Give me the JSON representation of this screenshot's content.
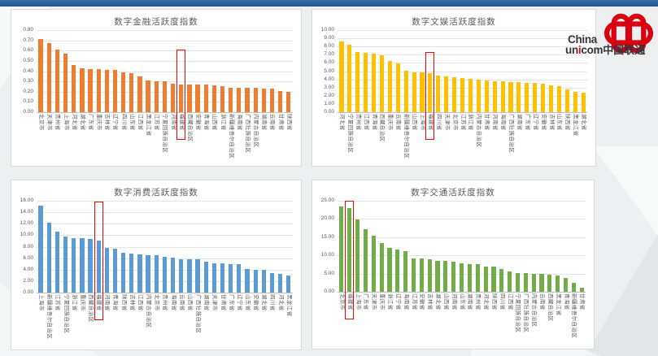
{
  "logo": {
    "china": "China",
    "un": "un",
    "i": "i",
    "com": "com",
    "cn": "中国联通",
    "brand_red": "#e60012",
    "brand_dark": "#33343a"
  },
  "colors": {
    "topbar_blue": "#2a5d9b",
    "highlight_red": "#ff0000"
  },
  "chart_data": [
    {
      "type": "bar",
      "title": "数字金融活跃度指数",
      "color": "#ED7D31",
      "ylim": [
        0,
        0.8
      ],
      "ytick_step": 0.1,
      "grid": true,
      "highlight_index": 17,
      "highlight_box_top_value": 0.61,
      "categories": [
        "北京市",
        "天津市",
        "贵州省",
        "上海市",
        "河北省",
        "湖北省",
        "广东省",
        "重庆市",
        "吉林省",
        "辽宁省",
        "四川省",
        "山东省",
        "江西省",
        "黑龙江省",
        "江苏省",
        "宁夏回族自治区",
        "河南省",
        "福建省",
        "西藏自治区",
        "安徽省",
        "青海省",
        "山西省",
        "浙江省",
        "新疆维吾尔自治区",
        "海南省",
        "广西壮族自治区",
        "内蒙古自治区",
        "湖南省",
        "云南省",
        "甘肃省",
        "陕西省"
      ],
      "values": [
        0.71,
        0.67,
        0.61,
        0.57,
        0.46,
        0.43,
        0.42,
        0.42,
        0.41,
        0.41,
        0.39,
        0.38,
        0.35,
        0.31,
        0.3,
        0.3,
        0.28,
        0.27,
        0.27,
        0.27,
        0.27,
        0.26,
        0.25,
        0.24,
        0.24,
        0.24,
        0.24,
        0.23,
        0.23,
        0.21,
        0.2
      ]
    },
    {
      "type": "bar",
      "title": "数字文娱活跃度指数",
      "color": "#FFC000",
      "ylim": [
        0,
        10
      ],
      "ytick_step": 1,
      "grid": true,
      "highlight_index": 11,
      "highlight_box_top_value": 7.35,
      "categories": [
        "河北省",
        "宁夏回族自治区",
        "贵州省",
        "江西省",
        "青海省",
        "西藏自治区",
        "重庆市",
        "云南省",
        "新疆维吾尔自治区",
        "山西省",
        "上海市",
        "福建省",
        "四川省",
        "天津市",
        "北京市",
        "江苏省",
        "浙江省",
        "内蒙古自治区",
        "甘肃省",
        "河南省",
        "海南省",
        "广西壮族自治区",
        "湖南省",
        "广东省",
        "辽宁省",
        "安徽省",
        "吉林省",
        "山东省",
        "陕西省",
        "黑龙江省",
        "湖北省"
      ],
      "values": [
        8.6,
        8.2,
        7.35,
        7.2,
        7.1,
        6.9,
        6.2,
        5.95,
        5.1,
        4.9,
        4.85,
        4.8,
        4.45,
        4.4,
        4.3,
        4.15,
        4.05,
        3.95,
        3.9,
        3.8,
        3.75,
        3.7,
        3.65,
        3.6,
        3.55,
        3.5,
        3.25,
        3.15,
        2.8,
        2.5,
        2.4
      ]
    },
    {
      "type": "bar",
      "title": "数字消费活跃度指数",
      "color": "#5B9BD5",
      "ylim": [
        0,
        16
      ],
      "ytick_step": 2,
      "grid": true,
      "highlight_index": 7,
      "highlight_box_top_value": 15.85,
      "categories": [
        "上海市",
        "新疆维吾尔自治区",
        "江苏省",
        "宁夏回族自治区",
        "浙江省",
        "重庆市",
        "西藏自治区",
        "福建省",
        "河南省",
        "青海省",
        "陕西省",
        "吉林省",
        "江西省",
        "内蒙古自治区",
        "北京市",
        "贵州省",
        "海南省",
        "云南省",
        "山西省",
        "广西壮族自治区",
        "湖南省",
        "天津市",
        "甘肃省",
        "广东省",
        "辽宁省",
        "山东省",
        "安徽省",
        "湖北省",
        "四川省",
        "河北省",
        "黑龙江省"
      ],
      "values": [
        15.1,
        12.2,
        10.6,
        9.75,
        9.5,
        9.5,
        9.35,
        9.1,
        7.75,
        7.65,
        6.9,
        6.75,
        6.7,
        6.55,
        6.5,
        6.2,
        6.1,
        5.85,
        5.8,
        5.8,
        5.45,
        5.1,
        5.05,
        4.95,
        4.95,
        4.05,
        3.95,
        3.9,
        3.45,
        3.25,
        2.95
      ]
    },
    {
      "type": "bar",
      "title": "数字交通活跃度指数",
      "color": "#70AD47",
      "ylim": [
        0,
        25
      ],
      "ytick_step": 5,
      "grid": true,
      "highlight_index": 1,
      "highlight_box_top_value": 25,
      "categories": [
        "北京市",
        "福建省",
        "上海市",
        "广东省",
        "天津市",
        "重庆市",
        "浙江省",
        "辽宁省",
        "海南省",
        "江苏省",
        "安徽省",
        "吉林省",
        "湖北省",
        "山西省",
        "河南省",
        "山东省",
        "湖南省",
        "贵州省",
        "河北省",
        "陕西省",
        "四川省",
        "江西省",
        "宁夏回族自治区",
        "广西壮族自治区",
        "内蒙古自治区",
        "云南省",
        "西藏自治区",
        "黑龙江省",
        "青海省",
        "新疆维吾尔自治区",
        "甘肃省"
      ],
      "values": [
        23.4,
        23.1,
        19.8,
        17.1,
        15.3,
        13.4,
        12.0,
        11.5,
        11.1,
        9.15,
        9.1,
        8.85,
        8.5,
        8.45,
        8.35,
        7.9,
        7.6,
        7.5,
        7.0,
        6.9,
        6.2,
        5.6,
        5.15,
        5.1,
        5.0,
        5.0,
        4.6,
        4.4,
        3.8,
        2.4,
        1.2
      ]
    }
  ]
}
